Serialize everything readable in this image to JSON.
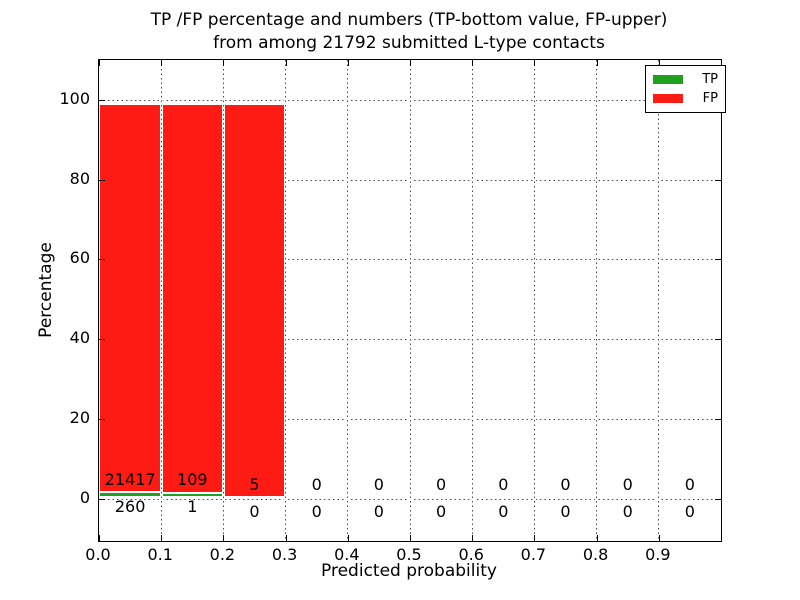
{
  "title": {
    "line1": "TP /FP percentage and numbers (TP-bottom value, FP-upper)",
    "line2": "from among 21792 submitted L-type contacts"
  },
  "axes": {
    "xlabel": "Predicted probability",
    "ylabel": "Percentage",
    "xtick_labels": [
      "0.0",
      "0.1",
      "0.2",
      "0.3",
      "0.4",
      "0.5",
      "0.6",
      "0.7",
      "0.8",
      "0.9"
    ],
    "ytick_labels": [
      "0",
      "20",
      "40",
      "60",
      "80",
      "100"
    ],
    "ytick_values": [
      0,
      20,
      40,
      60,
      80,
      100
    ]
  },
  "legend": {
    "items": [
      {
        "label": "TP",
        "color": "#1fa01f"
      },
      {
        "label": "FP",
        "color": "#fd1b14"
      }
    ]
  },
  "chart_data": {
    "type": "bar",
    "stacked": true,
    "title": "TP /FP percentage and numbers (TP-bottom value, FP-upper) from among 21792 submitted L-type contacts",
    "xlabel": "Predicted probability",
    "ylabel": "Percentage",
    "xlim": [
      0.0,
      1.0
    ],
    "ylim": [
      -10.7,
      110.2
    ],
    "grid": "dotted, both axes",
    "legend_position": "upper right",
    "total_submitted": 21792,
    "bin_edges": [
      0.0,
      0.1,
      0.2,
      0.3,
      0.4,
      0.5,
      0.6,
      0.7,
      0.8,
      0.9,
      1.0
    ],
    "series": [
      {
        "name": "TP",
        "color": "#1fa01f",
        "counts": [
          260,
          1,
          0,
          0,
          0,
          0,
          0,
          0,
          0,
          0
        ],
        "pct": [
          1.2,
          0.9,
          0,
          0,
          0,
          0,
          0,
          0,
          0,
          0
        ]
      },
      {
        "name": "FP",
        "color": "#fd1b14",
        "counts": [
          21417,
          109,
          5,
          0,
          0,
          0,
          0,
          0,
          0,
          0
        ],
        "pct": [
          98.8,
          99.1,
          100,
          0,
          0,
          0,
          0,
          0,
          0,
          0
        ]
      }
    ]
  }
}
